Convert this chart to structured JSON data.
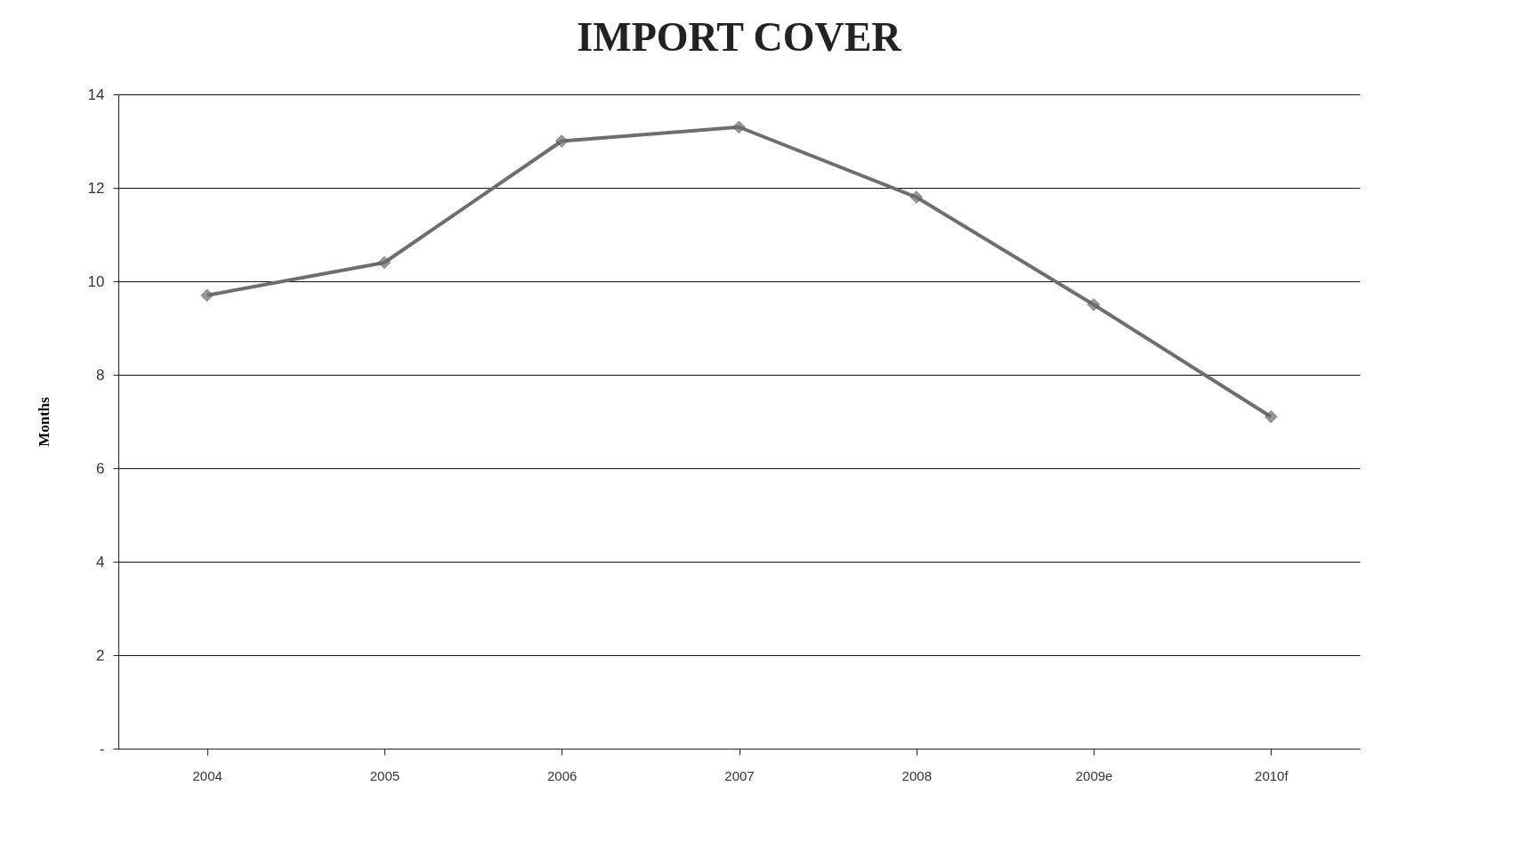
{
  "chart_data": {
    "type": "line",
    "title": "IMPORT COVER",
    "ylabel": "Months",
    "categories": [
      "2004",
      "2005",
      "2006",
      "2007",
      "2008",
      "2009e",
      "2010f"
    ],
    "series": [
      {
        "color": "#6e6e6e",
        "values": [
          9.7,
          10.4,
          13.0,
          13.3,
          11.8,
          9.5,
          7.1
        ]
      }
    ],
    "ylim": [
      0,
      14
    ],
    "yticks": [
      {
        "value": 0,
        "label": "-"
      },
      2,
      4,
      6,
      8,
      10,
      12,
      14
    ],
    "grid": "y",
    "marker": "diamond"
  }
}
